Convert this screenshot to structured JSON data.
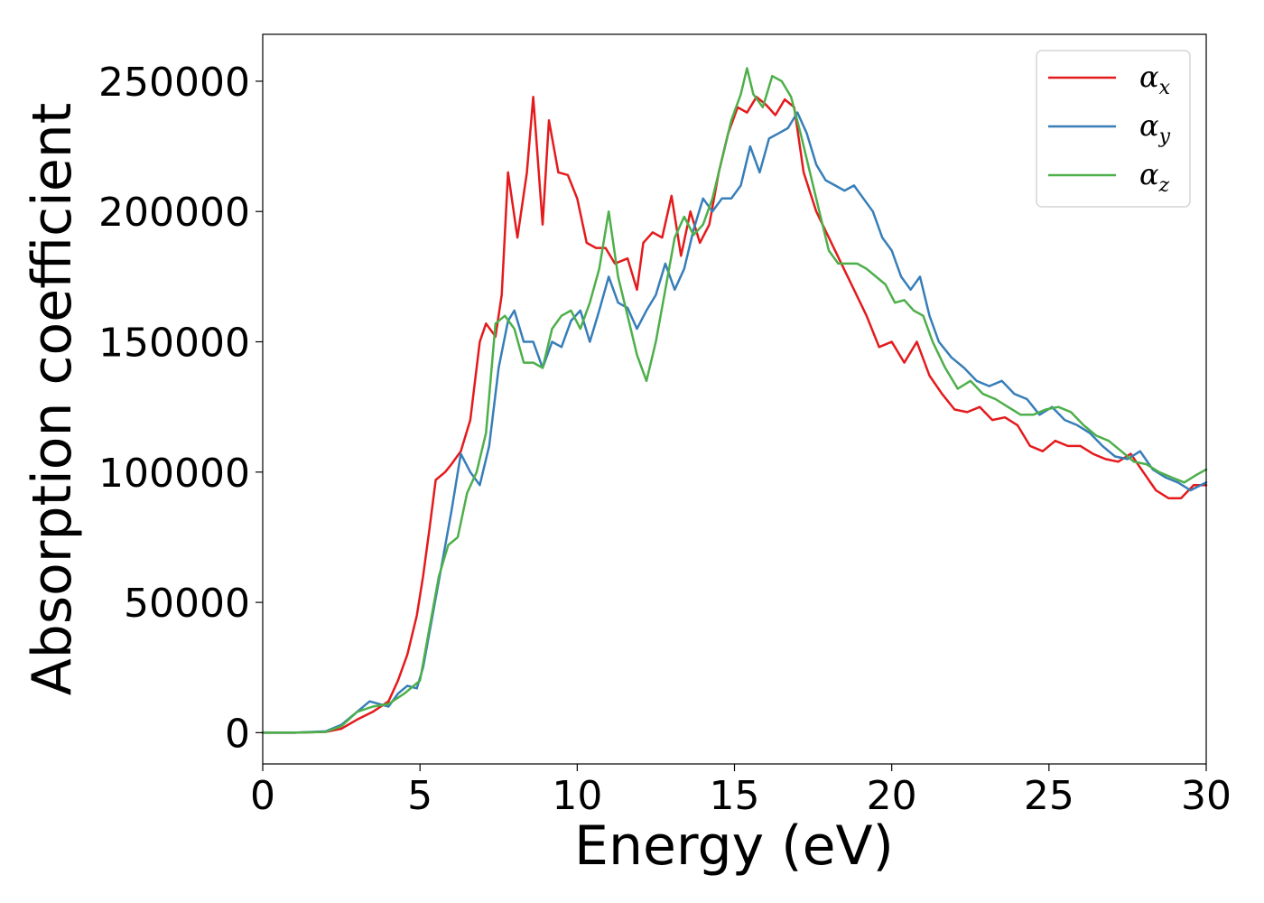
{
  "chart_data": {
    "type": "line",
    "title": "",
    "xlabel": "Energy (eV)",
    "ylabel": "Absorption coefficient",
    "xlim": [
      0,
      30
    ],
    "ylim": [
      -12000,
      268000
    ],
    "xticks": [
      0,
      5,
      10,
      15,
      20,
      25,
      30
    ],
    "yticks": [
      0,
      50000,
      100000,
      150000,
      200000,
      250000
    ],
    "grid": false,
    "legend_position": "top-right",
    "series": [
      {
        "name": "α_x",
        "label_main": "α",
        "label_sub": "x",
        "color": "#e41a1c",
        "x": [
          0,
          1,
          2,
          2.5,
          3,
          3.5,
          4,
          4.3,
          4.6,
          4.9,
          5.1,
          5.3,
          5.5,
          5.8,
          6.0,
          6.3,
          6.6,
          6.9,
          7.1,
          7.4,
          7.6,
          7.8,
          8.1,
          8.4,
          8.6,
          8.9,
          9.1,
          9.4,
          9.7,
          10.0,
          10.3,
          10.6,
          10.9,
          11.2,
          11.6,
          11.9,
          12.1,
          12.4,
          12.7,
          13.0,
          13.3,
          13.6,
          13.9,
          14.2,
          14.5,
          14.8,
          15.1,
          15.4,
          15.7,
          16.0,
          16.3,
          16.6,
          16.9,
          17.2,
          17.6,
          18.0,
          18.4,
          18.8,
          19.2,
          19.6,
          20.0,
          20.4,
          20.8,
          21.2,
          21.6,
          22.0,
          22.4,
          22.8,
          23.2,
          23.6,
          24.0,
          24.4,
          24.8,
          25.2,
          25.6,
          26.0,
          26.4,
          26.8,
          27.2,
          27.6,
          28.0,
          28.4,
          28.8,
          29.2,
          29.6,
          30.0
        ],
        "y": [
          0,
          0,
          300,
          1500,
          5000,
          8000,
          12000,
          20000,
          30000,
          45000,
          60000,
          78000,
          97000,
          100000,
          103000,
          108000,
          120000,
          150000,
          157000,
          152000,
          168000,
          215000,
          190000,
          215000,
          244000,
          195000,
          235000,
          215000,
          214000,
          205000,
          188000,
          186000,
          186000,
          180000,
          182000,
          170000,
          188000,
          192000,
          190000,
          206000,
          183000,
          200000,
          188000,
          195000,
          215000,
          230000,
          240000,
          238000,
          244000,
          241000,
          237000,
          243000,
          240000,
          215000,
          200000,
          190000,
          180000,
          170000,
          160000,
          148000,
          150000,
          142000,
          150000,
          137000,
          130000,
          124000,
          123000,
          125000,
          120000,
          121000,
          118000,
          110000,
          108000,
          112000,
          110000,
          110000,
          107000,
          105000,
          104000,
          107000,
          100000,
          93000,
          90000,
          90000,
          95000,
          95000
        ]
      },
      {
        "name": "α_y",
        "label_main": "α",
        "label_sub": "y",
        "color": "#377eb8",
        "x": [
          0,
          1,
          2,
          2.5,
          3,
          3.4,
          3.7,
          4.0,
          4.3,
          4.6,
          4.9,
          5.1,
          5.4,
          5.7,
          6.0,
          6.3,
          6.6,
          6.9,
          7.2,
          7.5,
          7.8,
          8.0,
          8.3,
          8.6,
          8.9,
          9.2,
          9.5,
          9.8,
          10.1,
          10.4,
          10.7,
          11.0,
          11.3,
          11.6,
          11.9,
          12.2,
          12.5,
          12.8,
          13.1,
          13.4,
          13.7,
          14.0,
          14.3,
          14.6,
          14.9,
          15.2,
          15.5,
          15.8,
          16.1,
          16.4,
          16.7,
          17.0,
          17.3,
          17.6,
          17.9,
          18.2,
          18.5,
          18.8,
          19.1,
          19.4,
          19.7,
          20.0,
          20.3,
          20.6,
          20.9,
          21.2,
          21.5,
          21.9,
          22.3,
          22.7,
          23.1,
          23.5,
          23.9,
          24.3,
          24.7,
          25.1,
          25.5,
          25.9,
          26.3,
          26.7,
          27.1,
          27.5,
          27.9,
          28.3,
          28.7,
          29.1,
          29.5,
          30.0
        ],
        "y": [
          0,
          0,
          500,
          3000,
          8000,
          12000,
          11000,
          10000,
          15000,
          18000,
          17000,
          25000,
          45000,
          65000,
          85000,
          107000,
          100000,
          95000,
          110000,
          140000,
          158000,
          162000,
          150000,
          150000,
          140000,
          150000,
          148000,
          158000,
          162000,
          150000,
          162000,
          175000,
          165000,
          163000,
          155000,
          162000,
          168000,
          180000,
          170000,
          178000,
          193000,
          205000,
          200000,
          205000,
          205000,
          210000,
          225000,
          215000,
          228000,
          230000,
          232000,
          238000,
          230000,
          218000,
          212000,
          210000,
          208000,
          210000,
          205000,
          200000,
          190000,
          185000,
          175000,
          170000,
          175000,
          160000,
          150000,
          144000,
          140000,
          135000,
          133000,
          135000,
          130000,
          128000,
          122000,
          125000,
          120000,
          118000,
          115000,
          110000,
          106000,
          105000,
          108000,
          101000,
          98000,
          96000,
          93000,
          96000
        ]
      },
      {
        "name": "α_z",
        "label_main": "α",
        "label_sub": "z",
        "color": "#4daf4a",
        "x": [
          0,
          1,
          2,
          2.5,
          3,
          3.5,
          4,
          4.5,
          5.0,
          5.3,
          5.6,
          5.9,
          6.2,
          6.5,
          6.8,
          7.1,
          7.4,
          7.7,
          8.0,
          8.3,
          8.6,
          8.9,
          9.2,
          9.5,
          9.8,
          10.1,
          10.4,
          10.7,
          11.0,
          11.3,
          11.6,
          11.9,
          12.2,
          12.5,
          12.8,
          13.1,
          13.4,
          13.7,
          14.0,
          14.3,
          14.6,
          14.9,
          15.2,
          15.4,
          15.6,
          15.9,
          16.2,
          16.5,
          16.8,
          17.1,
          17.4,
          17.7,
          18.0,
          18.3,
          18.6,
          18.9,
          19.2,
          19.5,
          19.8,
          20.1,
          20.4,
          20.7,
          21.0,
          21.3,
          21.7,
          22.1,
          22.5,
          22.9,
          23.3,
          23.7,
          24.1,
          24.5,
          24.9,
          25.3,
          25.7,
          26.1,
          26.5,
          26.9,
          27.3,
          27.7,
          28.1,
          28.5,
          28.9,
          29.3,
          29.7,
          30.0
        ],
        "y": [
          0,
          0,
          300,
          2500,
          8000,
          10000,
          11000,
          15000,
          20000,
          40000,
          60000,
          72000,
          75000,
          92000,
          100000,
          115000,
          157000,
          160000,
          155000,
          142000,
          142000,
          140000,
          155000,
          160000,
          162000,
          155000,
          165000,
          178000,
          200000,
          175000,
          160000,
          145000,
          135000,
          150000,
          170000,
          190000,
          198000,
          191000,
          195000,
          205000,
          220000,
          235000,
          245000,
          255000,
          245000,
          240000,
          252000,
          250000,
          244000,
          230000,
          215000,
          200000,
          185000,
          180000,
          180000,
          180000,
          178000,
          175000,
          172000,
          165000,
          166000,
          162000,
          160000,
          150000,
          140000,
          132000,
          135000,
          130000,
          128000,
          125000,
          122000,
          122000,
          124000,
          125000,
          123000,
          118000,
          114000,
          112000,
          108000,
          104000,
          103000,
          100000,
          98000,
          96000,
          99000,
          101000
        ]
      }
    ]
  }
}
